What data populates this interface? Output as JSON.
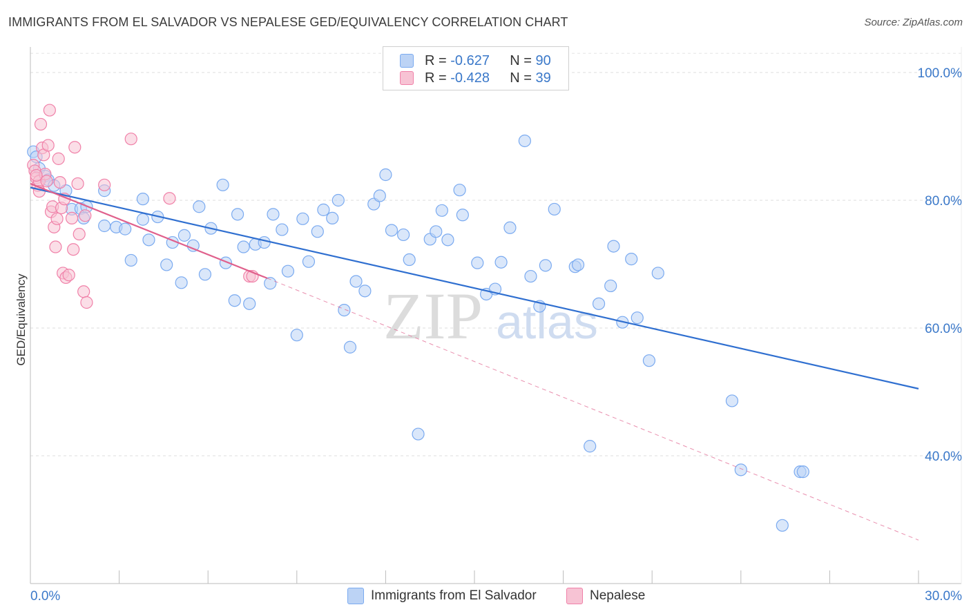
{
  "title": "IMMIGRANTS FROM EL SALVADOR VS NEPALESE GED/EQUIVALENCY CORRELATION CHART",
  "source": "Source: ZipAtlas.com",
  "watermark": {
    "zip": "ZIP",
    "atlas": "atlas"
  },
  "legend": {
    "r_label": "R =",
    "n_label": "N =",
    "series": [
      {
        "r": "-0.627",
        "n": "90"
      },
      {
        "r": "-0.428",
        "n": "39"
      }
    ]
  },
  "bottom_legend": [
    "Immigrants from El Salvador",
    "Nepalese"
  ],
  "chart_data": {
    "type": "scatter",
    "title": "IMMIGRANTS FROM EL SALVADOR VS NEPALESE GED/EQUIVALENCY CORRELATION CHART",
    "xlabel": "",
    "ylabel": "GED/Equivalency",
    "xlim": [
      0,
      30
    ],
    "ylim": [
      20,
      104
    ],
    "x_tick_labels": [
      "0.0%",
      "30.0%"
    ],
    "y_ticks": [
      40,
      60,
      80,
      100
    ],
    "y_tick_labels": [
      "40.0%",
      "60.0%",
      "80.0%",
      "100.0%"
    ],
    "grid": true,
    "colors": {
      "blue": "#7aaaf0",
      "blue_fill": "#bcd3f5",
      "pink": "#f080a8",
      "pink_fill": "#f7c3d4",
      "blue_line": "#2f6fd0",
      "pink_line": "#e0608c",
      "axis_text": "#3a78c9"
    },
    "series": [
      {
        "name": "Immigrants from El Salvador",
        "trend": {
          "x": [
            0,
            30
          ],
          "y": [
            82.0,
            50.5
          ]
        },
        "points": [
          [
            0.1,
            87.6
          ],
          [
            0.2,
            86.8
          ],
          [
            0.3,
            85.0
          ],
          [
            0.5,
            83.8
          ],
          [
            0.6,
            83.2
          ],
          [
            0.8,
            82.3
          ],
          [
            1.2,
            81.5
          ],
          [
            1.4,
            78.6
          ],
          [
            1.7,
            78.7
          ],
          [
            1.9,
            79.0
          ],
          [
            1.8,
            77.2
          ],
          [
            2.5,
            81.5
          ],
          [
            2.5,
            76.0
          ],
          [
            2.9,
            75.8
          ],
          [
            3.2,
            75.5
          ],
          [
            3.8,
            80.2
          ],
          [
            3.8,
            77.0
          ],
          [
            4.3,
            77.4
          ],
          [
            4.0,
            73.8
          ],
          [
            4.6,
            69.9
          ],
          [
            3.4,
            70.6
          ],
          [
            4.8,
            73.4
          ],
          [
            5.1,
            67.1
          ],
          [
            5.2,
            74.5
          ],
          [
            5.5,
            72.9
          ],
          [
            5.7,
            79.0
          ],
          [
            5.9,
            68.4
          ],
          [
            6.1,
            75.6
          ],
          [
            6.5,
            82.4
          ],
          [
            6.6,
            70.2
          ],
          [
            6.9,
            64.3
          ],
          [
            7.0,
            77.8
          ],
          [
            7.2,
            72.7
          ],
          [
            7.4,
            63.8
          ],
          [
            7.6,
            73.1
          ],
          [
            7.9,
            73.4
          ],
          [
            8.1,
            67.0
          ],
          [
            8.2,
            77.8
          ],
          [
            8.5,
            75.4
          ],
          [
            8.7,
            68.9
          ],
          [
            9.0,
            58.9
          ],
          [
            9.2,
            77.1
          ],
          [
            9.4,
            70.4
          ],
          [
            9.7,
            75.1
          ],
          [
            9.9,
            78.5
          ],
          [
            10.2,
            77.2
          ],
          [
            10.4,
            80.0
          ],
          [
            10.6,
            62.8
          ],
          [
            10.8,
            57.0
          ],
          [
            11.0,
            67.3
          ],
          [
            11.3,
            65.8
          ],
          [
            11.6,
            79.4
          ],
          [
            11.8,
            80.7
          ],
          [
            12.0,
            84.0
          ],
          [
            12.2,
            75.3
          ],
          [
            12.6,
            74.6
          ],
          [
            12.8,
            70.7
          ],
          [
            13.1,
            43.4
          ],
          [
            13.5,
            73.9
          ],
          [
            13.7,
            75.1
          ],
          [
            13.9,
            78.4
          ],
          [
            14.1,
            73.8
          ],
          [
            14.5,
            81.6
          ],
          [
            14.6,
            77.7
          ],
          [
            15.1,
            70.2
          ],
          [
            15.4,
            65.3
          ],
          [
            15.7,
            66.1
          ],
          [
            15.9,
            70.3
          ],
          [
            16.2,
            75.7
          ],
          [
            16.7,
            89.3
          ],
          [
            16.9,
            68.1
          ],
          [
            17.2,
            63.4
          ],
          [
            17.4,
            69.8
          ],
          [
            17.7,
            78.6
          ],
          [
            18.4,
            69.6
          ],
          [
            18.5,
            69.9
          ],
          [
            18.9,
            41.5
          ],
          [
            19.2,
            63.8
          ],
          [
            19.6,
            66.6
          ],
          [
            19.7,
            72.8
          ],
          [
            20.0,
            60.9
          ],
          [
            20.3,
            70.8
          ],
          [
            20.5,
            61.6
          ],
          [
            20.9,
            54.9
          ],
          [
            21.2,
            68.6
          ],
          [
            23.7,
            48.6
          ],
          [
            24.0,
            37.8
          ],
          [
            25.4,
            29.1
          ],
          [
            26.0,
            37.5
          ],
          [
            26.1,
            37.5
          ]
        ]
      },
      {
        "name": "Nepalese",
        "trend": {
          "x": [
            0,
            8.0
          ],
          "y": [
            82.6,
            67.8
          ]
        },
        "trend_dashed": {
          "x": [
            8.0,
            30
          ],
          "y": [
            67.8,
            26.8
          ]
        },
        "points": [
          [
            0.1,
            85.5
          ],
          [
            0.15,
            84.6
          ],
          [
            0.2,
            83.5
          ],
          [
            0.25,
            82.3
          ],
          [
            0.3,
            83.0
          ],
          [
            0.35,
            91.9
          ],
          [
            0.4,
            88.2
          ],
          [
            0.45,
            87.1
          ],
          [
            0.5,
            84.1
          ],
          [
            0.55,
            83.0
          ],
          [
            0.6,
            88.6
          ],
          [
            0.65,
            94.1
          ],
          [
            0.7,
            78.2
          ],
          [
            0.75,
            79.0
          ],
          [
            0.8,
            75.8
          ],
          [
            0.85,
            72.7
          ],
          [
            0.9,
            77.1
          ],
          [
            0.95,
            86.5
          ],
          [
            1.0,
            82.8
          ],
          [
            1.05,
            78.8
          ],
          [
            1.1,
            68.6
          ],
          [
            1.15,
            80.2
          ],
          [
            1.2,
            67.9
          ],
          [
            1.3,
            68.3
          ],
          [
            1.4,
            77.2
          ],
          [
            1.45,
            72.3
          ],
          [
            1.5,
            88.3
          ],
          [
            1.6,
            82.6
          ],
          [
            1.65,
            74.7
          ],
          [
            1.85,
            77.6
          ],
          [
            1.8,
            65.7
          ],
          [
            1.9,
            64.0
          ],
          [
            2.5,
            82.4
          ],
          [
            3.4,
            89.6
          ],
          [
            4.7,
            80.3
          ],
          [
            7.4,
            68.1
          ],
          [
            7.5,
            68.1
          ],
          [
            0.3,
            81.4
          ],
          [
            0.2,
            83.9
          ]
        ]
      }
    ]
  }
}
